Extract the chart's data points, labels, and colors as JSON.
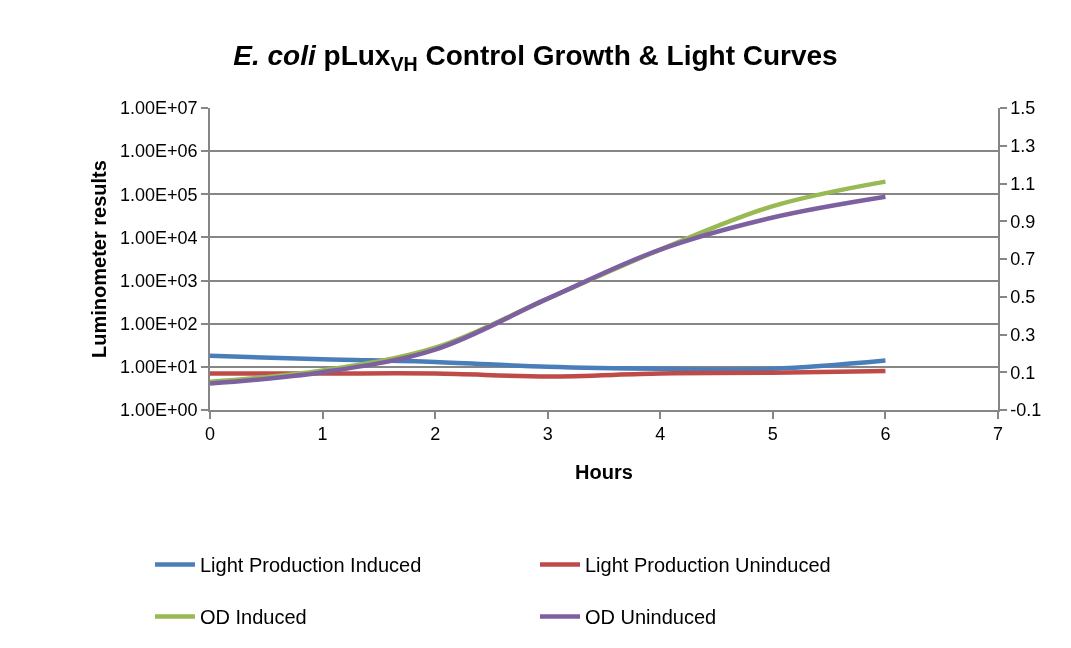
{
  "chart_data": {
    "type": "line",
    "title": "E. coli pLux$_{VH}$ Control Growth & Light Curves",
    "xlabel": "Hours",
    "ylabel": "Luminometer results",
    "x": [
      0,
      1,
      2,
      3,
      4,
      5,
      6
    ],
    "series": [
      {
        "name": "Light Production Induced",
        "color": "#4a7ebb",
        "values": [
          18,
          15,
          13,
          10,
          9,
          9,
          14
        ]
      },
      {
        "name": "Light Production Uninduced",
        "color": "#be4b48",
        "values": [
          7,
          7,
          7,
          6,
          7,
          7.3,
          8
        ]
      },
      {
        "name": "OD Induced",
        "color": "#98b954",
        "axis": "y2",
        "values": [
          0.05,
          0.11,
          0.23,
          0.49,
          0.75,
          0.98,
          1.11
        ]
      },
      {
        "name": "OD Uninduced",
        "color": "#7d60a0",
        "axis": "y2",
        "values": [
          0.04,
          0.1,
          0.22,
          0.49,
          0.75,
          0.92,
          1.03
        ]
      }
    ],
    "xlim": [
      0,
      7
    ],
    "xticks": [
      0,
      1,
      2,
      3,
      4,
      5,
      6,
      7
    ],
    "ylim": [
      1,
      10000000
    ],
    "yticks": [
      {
        "value": 1,
        "label": "1.00E+00"
      },
      {
        "value": 10,
        "label": "1.00E+01"
      },
      {
        "value": 100,
        "label": "1.00E+02"
      },
      {
        "value": 1000,
        "label": "1.00E+03"
      },
      {
        "value": 10000,
        "label": "1.00E+04"
      },
      {
        "value": 100000,
        "label": "1.00E+05"
      },
      {
        "value": 1000000,
        "label": "1.00E+06"
      },
      {
        "value": 10000000,
        "label": "1.00E+07"
      }
    ],
    "y2lim": [
      -0.1,
      1.5
    ],
    "y2ticks": [
      -0.1,
      0.1,
      0.3,
      0.5,
      0.7,
      0.9,
      1.1,
      1.3,
      1.5
    ],
    "log": "y",
    "grid": "y",
    "legend": "bottom",
    "line_style": "solid"
  }
}
